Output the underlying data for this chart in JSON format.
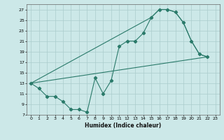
{
  "xlabel": "Humidex (Indice chaleur)",
  "bg_color": "#cce8e8",
  "grid_color": "#aacccc",
  "line_color": "#2a7a6a",
  "xlim": [
    -0.5,
    23.5
  ],
  "ylim": [
    7,
    28
  ],
  "xtick_labels": [
    "0",
    "1",
    "2",
    "3",
    "4",
    "5",
    "6",
    "7",
    "8",
    "9",
    "10",
    "11",
    "12",
    "13",
    "14",
    "15",
    "16",
    "17",
    "18",
    "19",
    "20",
    "21",
    "22",
    "23"
  ],
  "yticks": [
    7,
    9,
    11,
    13,
    15,
    17,
    19,
    21,
    23,
    25,
    27
  ],
  "main_line": [
    [
      0,
      13
    ],
    [
      1,
      12
    ],
    [
      2,
      10.5
    ],
    [
      3,
      10.5
    ],
    [
      4,
      9.5
    ],
    [
      5,
      8
    ],
    [
      6,
      8
    ],
    [
      7,
      7.5
    ],
    [
      8,
      14
    ],
    [
      9,
      11
    ],
    [
      10,
      13.5
    ],
    [
      11,
      20
    ],
    [
      12,
      21
    ],
    [
      13,
      21
    ],
    [
      14,
      22.5
    ],
    [
      15,
      25.5
    ],
    [
      16,
      27
    ],
    [
      17,
      27
    ],
    [
      18,
      26.5
    ],
    [
      19,
      24.5
    ],
    [
      20,
      21
    ],
    [
      21,
      18.5
    ],
    [
      22,
      18
    ]
  ],
  "lower_line": [
    [
      0,
      13
    ],
    [
      22,
      18
    ]
  ],
  "upper_line": [
    [
      0,
      13
    ],
    [
      15,
      25.5
    ],
    [
      16,
      27
    ],
    [
      17,
      27
    ],
    [
      18,
      26.5
    ],
    [
      19,
      24.5
    ],
    [
      20,
      21
    ],
    [
      21,
      18.5
    ],
    [
      22,
      18
    ]
  ]
}
